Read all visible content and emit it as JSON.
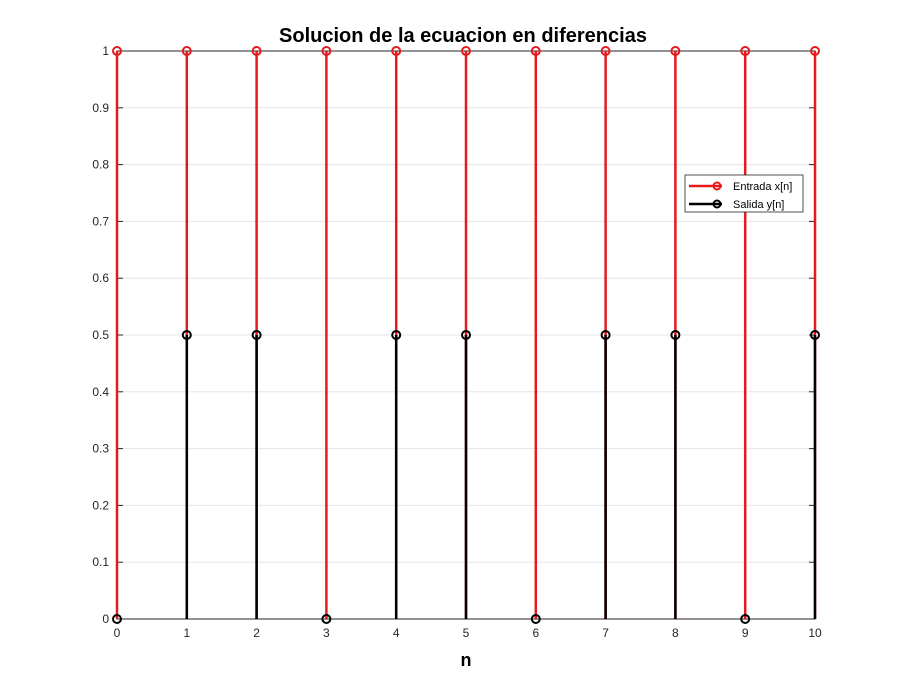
{
  "chart_data": {
    "type": "stem",
    "title": "Solucion de la ecuacion en diferencias",
    "xlabel": "n",
    "ylabel": "",
    "xlim": [
      0,
      10
    ],
    "ylim": [
      0,
      1
    ],
    "x": [
      0,
      1,
      2,
      3,
      4,
      5,
      6,
      7,
      8,
      9,
      10
    ],
    "xticks": [
      "0",
      "1",
      "2",
      "3",
      "4",
      "5",
      "6",
      "7",
      "8",
      "9",
      "10"
    ],
    "yticks": [
      "0",
      "0.1",
      "0.2",
      "0.3",
      "0.4",
      "0.5",
      "0.6",
      "0.7",
      "0.8",
      "0.9",
      "1"
    ],
    "grid": true,
    "legend_position": "right",
    "series": [
      {
        "name": "Entrada x[n]",
        "color": "#e41a1c",
        "values": [
          1,
          1,
          1,
          1,
          1,
          1,
          1,
          1,
          1,
          1,
          1
        ]
      },
      {
        "name": "Salida y[n]",
        "color": "#000000",
        "values": [
          0,
          0.5,
          0.5,
          0,
          0.5,
          0.5,
          0,
          0.5,
          0.5,
          0,
          0.5
        ]
      }
    ]
  }
}
